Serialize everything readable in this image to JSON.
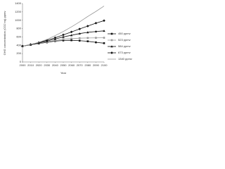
{
  "chart_data": {
    "type": "line",
    "x_label": "Year",
    "y_label": "GHG concentration (CO2 eq) ppmv",
    "x": [
      2000,
      2010,
      2020,
      2030,
      2040,
      2050,
      2060,
      2070,
      2080,
      2090,
      2100
    ],
    "xlim": [
      2000,
      2100
    ],
    "xticks": [
      2000,
      2010,
      2020,
      2030,
      2040,
      2050,
      2060,
      2070,
      2080,
      2090,
      2100
    ],
    "ylim": [
      0,
      1400
    ],
    "yticks": [
      0,
      200,
      400,
      600,
      800,
      1000,
      1200,
      1400
    ],
    "grid": false,
    "legend": "right",
    "series": [
      {
        "name": "450 ppmv",
        "color": "#111111",
        "marker": "square",
        "values": [
          380,
          410,
          440,
          470,
          500,
          515,
          520,
          510,
          495,
          470,
          450
        ]
      },
      {
        "name": "523 ppmv",
        "color": "#999999",
        "marker": "square",
        "values": [
          380,
          410,
          445,
          480,
          515,
          545,
          560,
          570,
          575,
          578,
          580
        ]
      },
      {
        "name": "584 ppmv",
        "color": "#111111",
        "marker": "triangle",
        "values": [
          380,
          415,
          455,
          500,
          550,
          600,
          640,
          680,
          710,
          730,
          745
        ]
      },
      {
        "name": "673 ppmv",
        "color": "#111111",
        "marker": "diamond",
        "values": [
          380,
          420,
          465,
          520,
          580,
          650,
          720,
          790,
          860,
          930,
          990
        ]
      },
      {
        "name": "1340 ppmv",
        "color": "#999999",
        "marker": "none",
        "values": [
          380,
          420,
          470,
          540,
          630,
          730,
          840,
          960,
          1090,
          1210,
          1340
        ]
      }
    ]
  }
}
